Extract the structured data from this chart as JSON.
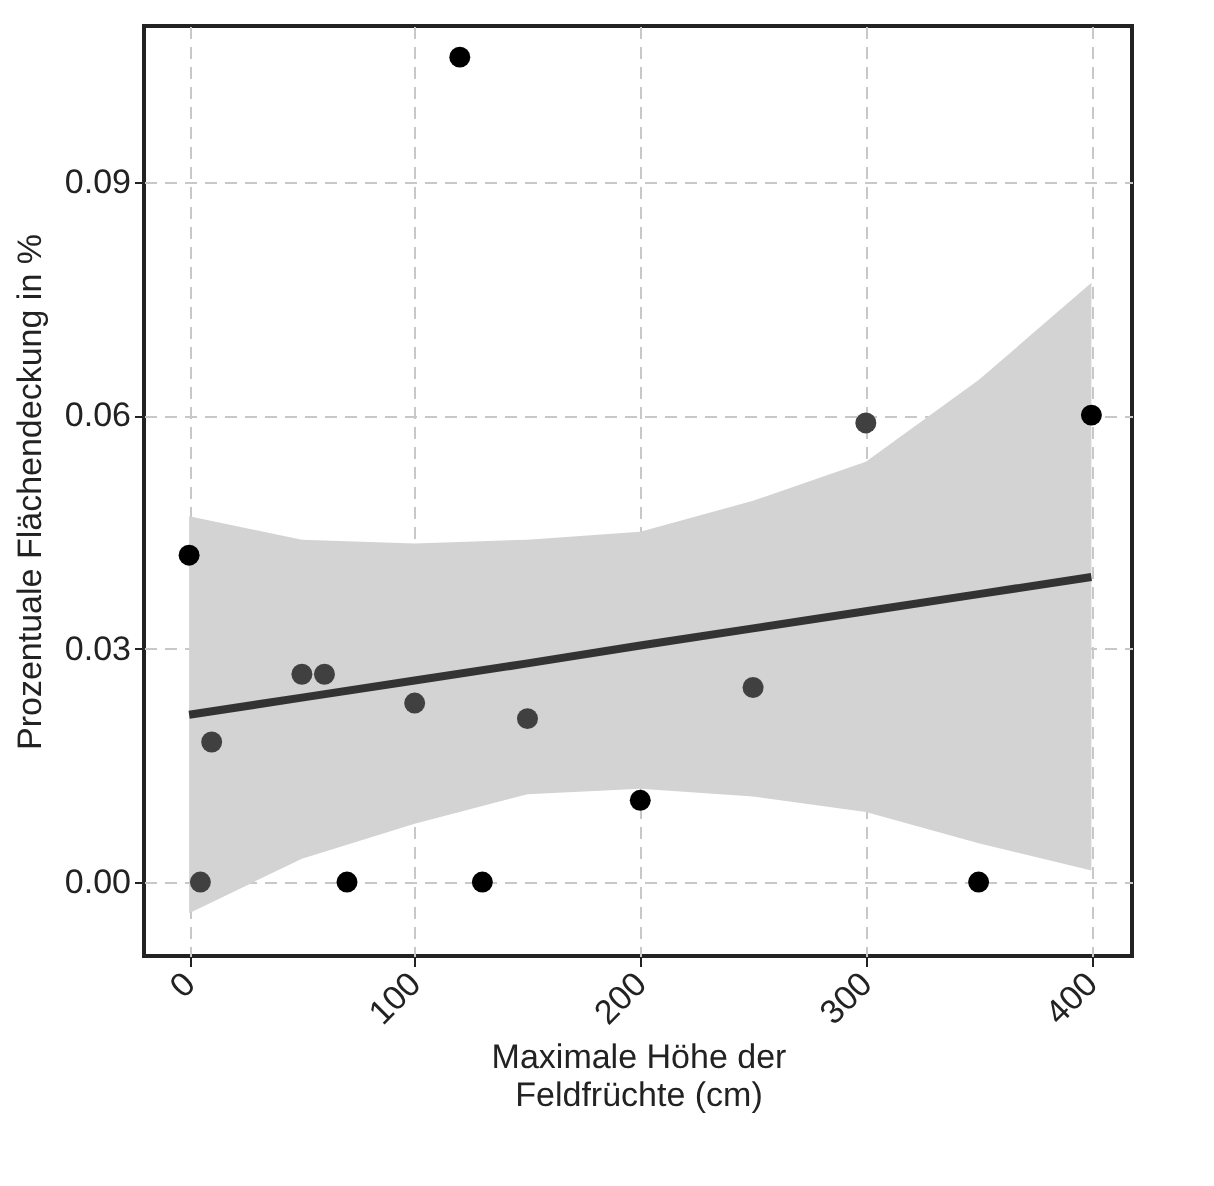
{
  "chart_data": {
    "type": "scatter",
    "xlabel": "Maximale Höhe der\nFeldfrüchte (cm)",
    "ylabel": "Prozentuale Flächendeckung in %",
    "xlim": [
      -20,
      418
    ],
    "ylim": [
      -0.0095,
      0.11
    ],
    "xticks": [
      0,
      100,
      200,
      300,
      400
    ],
    "yticks": [
      {
        "value": 0,
        "label": "0.00"
      },
      {
        "value": 0.03,
        "label": "0.03"
      },
      {
        "value": 0.06,
        "label": "0.06"
      },
      {
        "value": 0.09,
        "label": "0.09"
      }
    ],
    "grid": true,
    "series": [
      {
        "type": "line",
        "color": "#333333",
        "line_style": "solid",
        "x": [
          0,
          50,
          100,
          150,
          200,
          250,
          300,
          350,
          400
        ],
        "values": [
          0.0215,
          0.0237,
          0.0259,
          0.0281,
          0.0304,
          0.0326,
          0.0348,
          0.037,
          0.0392
        ],
        "lower": [
          -0.004,
          0.003,
          0.0075,
          0.0113,
          0.012,
          0.011,
          0.009,
          0.005,
          0.0015
        ],
        "upper": [
          0.047,
          0.044,
          0.0435,
          0.044,
          0.045,
          0.049,
          0.054,
          0.0645,
          0.077
        ]
      },
      {
        "marker": "circle",
        "color": "#000000",
        "x": [
          0,
          70,
          120,
          130,
          200,
          350,
          400
        ],
        "values": [
          0.042,
          0,
          0.106,
          0,
          0.0105,
          0,
          0.06
        ]
      },
      {
        "marker": "circle",
        "color": "#404040",
        "x": [
          5,
          10,
          50,
          60,
          100,
          150,
          250,
          300
        ],
        "values": [
          0,
          0.018,
          0.0267,
          0.0267,
          0.023,
          0.021,
          0.025,
          0.059
        ]
      }
    ]
  }
}
